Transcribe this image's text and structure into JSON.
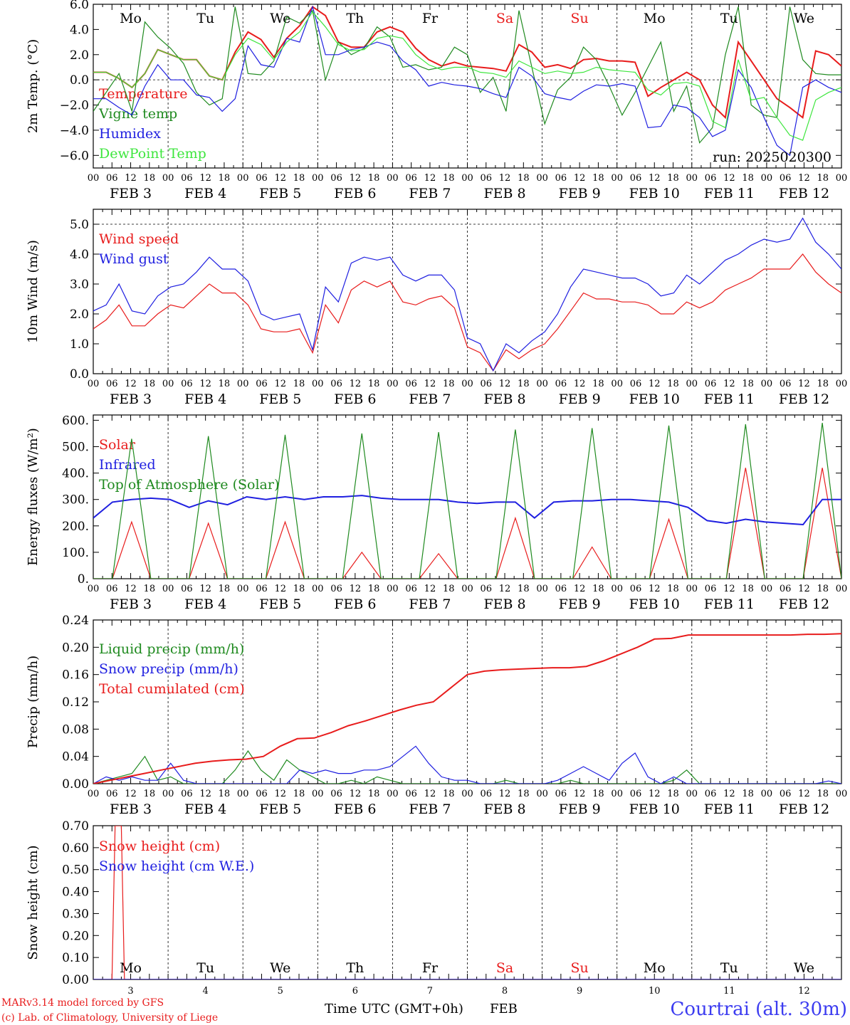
{
  "colors": {
    "red": "#e81c1c",
    "green": "#1f8a1f",
    "blue": "#1f1fe0",
    "lightgreen": "#3ee63e",
    "black": "#000000"
  },
  "days": {
    "abbrev": [
      "Mo",
      "Tu",
      "We",
      "Th",
      "Fr",
      "Sa",
      "Su",
      "Mo",
      "Tu",
      "We"
    ],
    "weekend_index": [
      5,
      6
    ],
    "dates": [
      "FEB  3",
      "FEB  4",
      "FEB  5",
      "FEB  6",
      "FEB  7",
      "FEB  8",
      "FEB  9",
      "FEB 10",
      "FEB 11",
      "FEB 12"
    ],
    "numbers": [
      "3",
      "4",
      "5",
      "6",
      "7",
      "8",
      "9",
      "10",
      "11",
      "12"
    ],
    "hour_ticks": [
      "00",
      "06",
      "12",
      "18"
    ],
    "final_tick": "00"
  },
  "run_label": "run: 2025020300",
  "x_axis_title": "Time UTC (GMT+0h)",
  "month_label": "FEB",
  "footer": {
    "credit1": "MARv3.14 model forced by GFS",
    "credit2": "(c) Lab. of Climatology, University of Liege",
    "station": "Courtrai (alt. 30m)"
  },
  "chart_data": [
    {
      "type": "line",
      "ylabel": "2m Temp. (°C)",
      "ylim": [
        -7,
        6
      ],
      "yticks": [
        "6.0",
        "4.0",
        "2.0",
        "0.0",
        "−2.0",
        "−4.0",
        "−6.0"
      ],
      "ytick_values": [
        6,
        4,
        2,
        0,
        -2,
        -4,
        -6
      ],
      "x_unit": "hours since FEB 3 00 UTC",
      "x_step": 6,
      "dashed_y": [
        0
      ],
      "series": [
        {
          "name": "Temperature",
          "color": "red",
          "values": [
            0.6,
            0.6,
            0.1,
            -0.6,
            0.5,
            2.4,
            2.0,
            1.6,
            1.6,
            0.3,
            0.0,
            2.2,
            3.8,
            3.2,
            1.8,
            3.3,
            4.3,
            5.8,
            5.1,
            3.0,
            2.6,
            2.6,
            3.8,
            4.2,
            3.8,
            2.5,
            1.6,
            1.1,
            1.4,
            1.1,
            1.0,
            0.9,
            0.7,
            2.8,
            2.2,
            1.0,
            1.2,
            0.9,
            1.6,
            1.7,
            1.5,
            1.5,
            1.4,
            -1.3,
            -0.6,
            0.0,
            0.6,
            0.0,
            -2.0,
            -3.0,
            3.0,
            1.5,
            0.0,
            -1.5,
            -2.2,
            -3.0,
            2.3,
            2.0,
            1.1
          ]
        },
        {
          "name": "Vigne temp",
          "color": "green",
          "values": [
            -2.5,
            -1.0,
            0.5,
            -2.5,
            4.6,
            3.4,
            2.5,
            1.3,
            -1.0,
            -2.0,
            -1.5,
            5.8,
            0.5,
            0.4,
            1.5,
            5.0,
            4.5,
            5.5,
            0.0,
            3.0,
            2.0,
            2.5,
            4.2,
            3.4,
            1.0,
            1.2,
            0.8,
            1.0,
            2.6,
            2.0,
            -1.0,
            0.2,
            -2.5,
            5.5,
            1.0,
            -3.5,
            -0.8,
            0.2,
            2.6,
            1.6,
            -0.5,
            -2.8,
            -1.0,
            1.0,
            3.0,
            -2.5,
            -0.5,
            -5.0,
            -3.8,
            2.0,
            5.8,
            -2.0,
            -2.8,
            -3.0,
            5.8,
            1.6,
            0.5,
            0.4,
            0.4
          ]
        },
        {
          "name": "Humidex",
          "color": "blue",
          "values": [
            -1.5,
            -1.5,
            -2.2,
            -2.8,
            -0.5,
            1.2,
            0.0,
            0.0,
            -1.2,
            -1.4,
            -2.5,
            -1.5,
            2.7,
            1.2,
            1.0,
            3.3,
            3.0,
            5.8,
            2.0,
            2.0,
            2.4,
            2.6,
            3.0,
            2.7,
            1.5,
            0.8,
            -0.5,
            -0.2,
            -0.4,
            -0.5,
            -0.7,
            -1.1,
            -1.4,
            1.0,
            0.3,
            -1.1,
            -1.4,
            -1.6,
            -0.9,
            -0.4,
            -0.5,
            -0.3,
            -0.5,
            -3.8,
            -3.7,
            -2.0,
            -2.2,
            -3.0,
            -4.5,
            -4.0,
            0.8,
            -0.6,
            -3.0,
            -5.2,
            -6.0,
            -0.6,
            0.0,
            -0.6,
            -1.0
          ]
        },
        {
          "name": "DewPoint Temp",
          "color": "lightgreen",
          "values": [
            0.6,
            0.6,
            0.1,
            -0.6,
            0.5,
            2.4,
            2.0,
            1.6,
            1.6,
            0.3,
            0.0,
            2.0,
            3.3,
            2.8,
            1.6,
            3.0,
            3.8,
            5.4,
            4.2,
            2.8,
            2.3,
            2.4,
            3.3,
            3.5,
            3.3,
            2.0,
            1.2,
            0.8,
            1.0,
            1.0,
            0.6,
            0.5,
            0.2,
            1.5,
            1.0,
            0.5,
            0.7,
            0.5,
            0.6,
            1.0,
            0.8,
            0.7,
            0.6,
            -0.8,
            -1.2,
            -0.3,
            -0.2,
            -0.5,
            -3.3,
            -3.8,
            1.6,
            -1.6,
            -1.4,
            -3.0,
            -4.4,
            -4.8,
            -1.6,
            -1.0,
            -0.6
          ]
        }
      ],
      "legend_placement": "top-left"
    },
    {
      "type": "line",
      "ylabel": "10m Wind (m/s)",
      "ylim": [
        0,
        5.5
      ],
      "yticks": [
        "5.0",
        "4.0",
        "3.0",
        "2.0",
        "1.0",
        "0.0"
      ],
      "ytick_values": [
        5,
        4,
        3,
        2,
        1,
        0
      ],
      "x_unit": "hours since FEB 3 00 UTC",
      "x_step": 6,
      "dashed_y": [
        5
      ],
      "series": [
        {
          "name": "Wind speed",
          "color": "red",
          "values": [
            1.5,
            1.8,
            2.3,
            1.6,
            1.6,
            2.0,
            2.3,
            2.2,
            2.6,
            3.0,
            2.7,
            2.7,
            2.3,
            1.5,
            1.4,
            1.4,
            1.5,
            0.7,
            2.3,
            1.7,
            2.8,
            3.1,
            2.9,
            3.1,
            2.4,
            2.3,
            2.5,
            2.6,
            2.2,
            0.9,
            0.7,
            0.1,
            0.8,
            0.5,
            0.8,
            1.0,
            1.5,
            2.1,
            2.7,
            2.5,
            2.5,
            2.4,
            2.4,
            2.3,
            2.0,
            2.0,
            2.4,
            2.2,
            2.4,
            2.8,
            3.0,
            3.2,
            3.5,
            3.5,
            3.5,
            4.0,
            3.4,
            3.0,
            2.7
          ]
        },
        {
          "name": "Wind gust",
          "color": "blue",
          "values": [
            2.1,
            2.3,
            3.0,
            2.1,
            2.0,
            2.6,
            2.9,
            3.0,
            3.4,
            3.9,
            3.5,
            3.5,
            3.1,
            2.0,
            1.8,
            1.9,
            2.0,
            0.8,
            2.9,
            2.4,
            3.7,
            3.9,
            3.8,
            3.9,
            3.3,
            3.1,
            3.3,
            3.3,
            2.8,
            1.2,
            1.0,
            0.1,
            1.0,
            0.7,
            1.1,
            1.4,
            2.0,
            2.9,
            3.5,
            3.4,
            3.3,
            3.2,
            3.2,
            3.0,
            2.6,
            2.7,
            3.3,
            3.0,
            3.4,
            3.8,
            4.0,
            4.3,
            4.5,
            4.4,
            4.5,
            5.2,
            4.4,
            4.0,
            3.5
          ]
        }
      ],
      "legend_placement": "top-left"
    },
    {
      "type": "line",
      "ylabel": "Energy fluxes (W/m²)",
      "ylim": [
        0,
        620
      ],
      "yticks": [
        "600.",
        "500.",
        "400.",
        "300.",
        "200.",
        "100.",
        "0."
      ],
      "ytick_values": [
        600,
        500,
        400,
        300,
        200,
        100,
        0
      ],
      "x_unit": "hours since FEB 3 00 UTC",
      "x_step": 6,
      "dashed_y": [],
      "series": [
        {
          "name": "Solar",
          "color": "red",
          "values": [
            0,
            0,
            215,
            0,
            0,
            0,
            210,
            0,
            0,
            0,
            215,
            0,
            0,
            0,
            100,
            0,
            0,
            0,
            95,
            0,
            0,
            0,
            230,
            0,
            0,
            0,
            120,
            0,
            0,
            0,
            225,
            0,
            0,
            0,
            420,
            0,
            0,
            0,
            420,
            0
          ]
        },
        {
          "name": "Infrared",
          "color": "blue",
          "values": [
            230,
            290,
            300,
            305,
            300,
            270,
            295,
            280,
            310,
            300,
            310,
            300,
            310,
            310,
            315,
            305,
            300,
            300,
            300,
            290,
            285,
            290,
            290,
            230,
            290,
            295,
            295,
            300,
            300,
            295,
            290,
            270,
            220,
            210,
            225,
            215,
            210,
            205,
            300,
            300
          ]
        },
        {
          "name": "Top of Atmosphere (Solar)",
          "color": "green",
          "values": [
            0,
            0,
            530,
            0,
            0,
            0,
            540,
            0,
            0,
            0,
            545,
            0,
            0,
            0,
            550,
            0,
            0,
            0,
            555,
            0,
            0,
            0,
            565,
            0,
            0,
            0,
            570,
            0,
            0,
            0,
            580,
            0,
            0,
            0,
            585,
            0,
            0,
            0,
            590,
            0
          ]
        }
      ],
      "legend_placement": "top-left"
    },
    {
      "type": "line",
      "ylabel": "Precip (mm/h)",
      "ylim": [
        0,
        0.24
      ],
      "yticks": [
        "0.24",
        "0.20",
        "0.16",
        "0.12",
        "0.08",
        "0.04",
        "0.00"
      ],
      "ytick_values": [
        0.24,
        0.2,
        0.16,
        0.12,
        0.08,
        0.04,
        0
      ],
      "x_unit": "hours since FEB 3 00 UTC",
      "x_step": 6,
      "dashed_y": [],
      "series": [
        {
          "name": "Liquid precip (mm/h)",
          "color": "green",
          "values": [
            0,
            0.005,
            0.01,
            0.015,
            0.04,
            0.005,
            0.01,
            0,
            0,
            0,
            0,
            0.02,
            0.048,
            0.02,
            0.005,
            0.035,
            0.02,
            0.01,
            0,
            0,
            0.005,
            0,
            0.01,
            0.005,
            0,
            0,
            0,
            0,
            0,
            0,
            0,
            0,
            0.005,
            0,
            0,
            0,
            0,
            0.005,
            0,
            0,
            0,
            0,
            0,
            0,
            0,
            0.005,
            0.02,
            0,
            0,
            0,
            0,
            0,
            0,
            0,
            0,
            0,
            0,
            0,
            0
          ]
        },
        {
          "name": "Snow precip (mm/h)",
          "color": "blue",
          "values": [
            0,
            0.01,
            0.005,
            0.01,
            0.005,
            0.005,
            0.03,
            0.005,
            0,
            0,
            0,
            0,
            0,
            0,
            0,
            0,
            0.02,
            0.015,
            0.02,
            0.015,
            0.015,
            0.02,
            0.02,
            0.025,
            0.04,
            0.055,
            0.03,
            0.01,
            0.005,
            0.005,
            0,
            0,
            0,
            0,
            0,
            0,
            0.005,
            0.015,
            0.025,
            0.015,
            0.005,
            0.03,
            0.045,
            0.01,
            0,
            0.01,
            0,
            0,
            0,
            0,
            0,
            0,
            0,
            0,
            0,
            0,
            0,
            0.004,
            0
          ]
        },
        {
          "name": "Total cumulated (cm)",
          "color": "red",
          "values": [
            0,
            0.005,
            0.01,
            0.015,
            0.02,
            0.025,
            0.03,
            0.033,
            0.035,
            0.036,
            0.04,
            0.055,
            0.066,
            0.067,
            0.075,
            0.085,
            0.092,
            0.1,
            0.108,
            0.115,
            0.12,
            0.14,
            0.16,
            0.165,
            0.167,
            0.168,
            0.169,
            0.17,
            0.17,
            0.172,
            0.18,
            0.19,
            0.2,
            0.212,
            0.213,
            0.218,
            0.218,
            0.218,
            0.218,
            0.218,
            0.218,
            0.218,
            0.219,
            0.219,
            0.22
          ]
        }
      ],
      "legend_placement": "top-left"
    },
    {
      "type": "line",
      "ylabel": "Snow height (cm)",
      "ylim": [
        0,
        0.7
      ],
      "yticks": [
        "0.70",
        "0.60",
        "0.50",
        "0.40",
        "0.30",
        "0.20",
        "0.10",
        "0.00"
      ],
      "ytick_values": [
        0.7,
        0.6,
        0.5,
        0.4,
        0.3,
        0.2,
        0.1,
        0
      ],
      "x_unit": "hours since FEB 3 00 UTC",
      "dashed_y": [],
      "series": [
        {
          "name": "Snow height (cm)",
          "color": "red",
          "x": [
            0,
            6,
            7,
            9,
            10,
            240
          ],
          "values": [
            0,
            0,
            0.7,
            0.7,
            0,
            0
          ]
        },
        {
          "name": "Snow height (cm W.E.)",
          "color": "blue",
          "x": [
            0,
            240
          ],
          "values": [
            0,
            0
          ]
        }
      ],
      "legend_placement": "top-left"
    }
  ]
}
